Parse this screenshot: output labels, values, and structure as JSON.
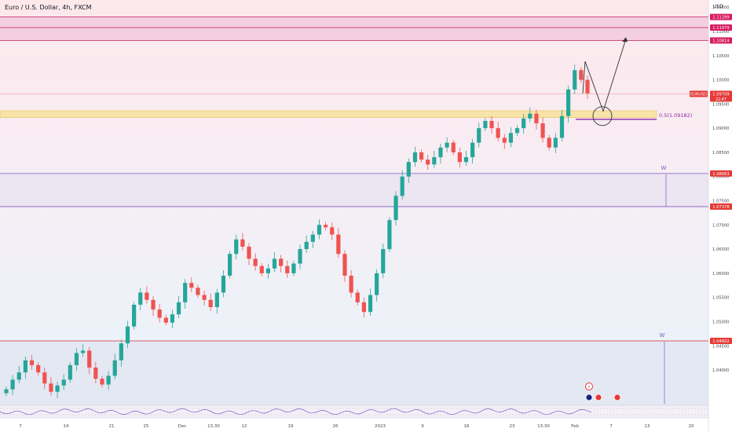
{
  "header": {
    "title": "Euro / U.S. Dollar, 4h, FXCM"
  },
  "axis": {
    "currency": "USD"
  },
  "chart_data": {
    "type": "candlestick",
    "symbol": "EURUSD",
    "timeframe": "4h",
    "broker": "FXCM",
    "ylim": [
      1.0327,
      1.1165
    ],
    "price_ticks": [
      "1.11500",
      "1.11000",
      "1.10500",
      "1.10000",
      "1.09500",
      "1.09000",
      "1.08500",
      "1.08000",
      "1.07500",
      "1.07000",
      "1.06500",
      "1.06000",
      "1.05500",
      "1.05000",
      "1.04500",
      "1.04000"
    ],
    "x_labels": [
      "7",
      "14",
      "21",
      "25",
      "Dec",
      "13:30",
      "12",
      "19",
      "26",
      "2023",
      "9",
      "16",
      "23",
      "13:30",
      "Feb",
      "7",
      "13",
      "20"
    ],
    "price_labels": [
      {
        "price": 1.11299,
        "text": "1.11299"
      },
      {
        "price": 1.11079,
        "text": "1.11079"
      },
      {
        "price": 1.10814,
        "text": "1.10814"
      },
      {
        "price": 1.08063,
        "text": "1.08063"
      },
      {
        "price": 1.07378,
        "text": "1.07378"
      },
      {
        "price": 1.04602,
        "text": "1.04602"
      }
    ],
    "current_price": {
      "symbol": "EURUSD",
      "price": "1.09709",
      "countdown": "22:47"
    },
    "zones": [
      {
        "top": 1.11299,
        "bottom": 1.10814,
        "color": "#f2c4dc"
      },
      {
        "top": 1.08063,
        "bottom": 1.07378,
        "color": "#e8e2f2"
      },
      {
        "top": 1.04602,
        "bottom": 1.0327,
        "color": "#e2e4f0"
      }
    ],
    "fib_level": {
      "text": "0.5(1.09182)",
      "price": 1.09182
    },
    "pattern_labels": [
      "W",
      "W"
    ],
    "closes": [
      1.036,
      1.038,
      1.0395,
      1.042,
      1.041,
      1.0395,
      1.0372,
      1.0355,
      1.0368,
      1.038,
      1.041,
      1.0435,
      1.044,
      1.0405,
      1.0382,
      1.037,
      1.0388,
      1.042,
      1.0455,
      1.049,
      1.0535,
      1.056,
      1.0545,
      1.0525,
      1.0508,
      1.0498,
      1.0515,
      1.054,
      1.058,
      1.057,
      1.0555,
      1.0545,
      1.053,
      1.056,
      1.0595,
      1.064,
      1.067,
      1.0655,
      1.063,
      1.0615,
      1.06,
      1.061,
      1.063,
      1.0615,
      1.06,
      1.062,
      1.065,
      1.0665,
      1.068,
      1.07,
      1.0695,
      1.068,
      1.064,
      1.0595,
      1.056,
      1.054,
      1.052,
      1.0555,
      1.06,
      1.065,
      1.071,
      1.076,
      1.08,
      1.083,
      1.085,
      1.0835,
      1.0825,
      1.084,
      1.086,
      1.087,
      1.085,
      1.083,
      1.084,
      1.087,
      1.09,
      1.0915,
      1.09,
      1.088,
      1.087,
      1.089,
      1.09,
      1.092,
      1.093,
      1.091,
      1.088,
      1.086,
      1.088,
      1.0925,
      1.098,
      1.102,
      1.1,
      1.0972
    ],
    "projection": {
      "points": [
        [
          1.0972,
          0
        ],
        [
          1.1038,
          1
        ],
        [
          1.0935,
          2
        ],
        [
          1.1085,
          3
        ]
      ]
    }
  }
}
